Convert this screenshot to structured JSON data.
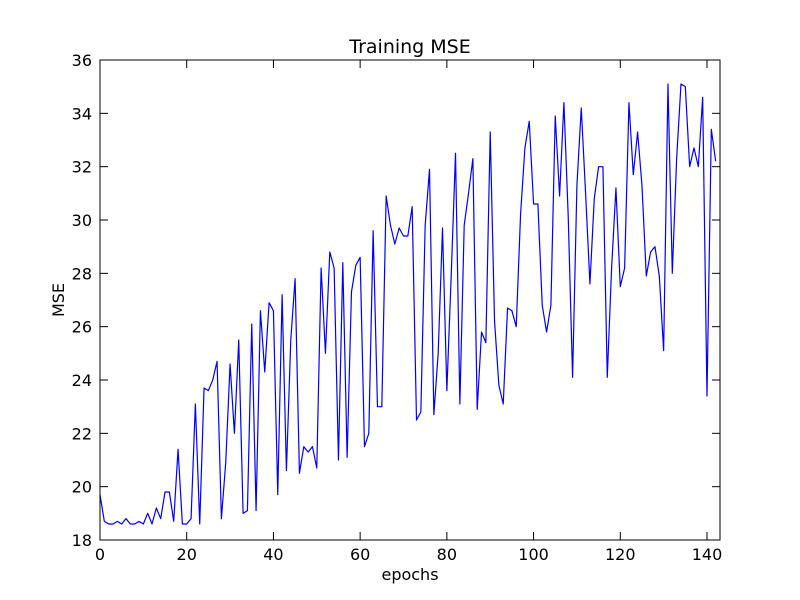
{
  "chart_data": {
    "type": "line",
    "title": "Training MSE",
    "xlabel": "epochs",
    "ylabel": "MSE",
    "xlim": [
      0,
      143
    ],
    "ylim": [
      18,
      36
    ],
    "xticks": [
      0,
      20,
      40,
      60,
      80,
      100,
      120,
      140
    ],
    "yticks": [
      18,
      20,
      22,
      24,
      26,
      28,
      30,
      32,
      34,
      36
    ],
    "grid": false,
    "series": [
      {
        "name": "training MSE",
        "color": "#0000ff",
        "x": [
          0,
          1,
          2,
          3,
          4,
          5,
          6,
          7,
          8,
          9,
          10,
          11,
          12,
          13,
          14,
          15,
          16,
          17,
          18,
          19,
          20,
          21,
          22,
          23,
          24,
          25,
          26,
          27,
          28,
          29,
          30,
          31,
          32,
          33,
          34,
          35,
          36,
          37,
          38,
          39,
          40,
          41,
          42,
          43,
          44,
          45,
          46,
          47,
          48,
          49,
          50,
          51,
          52,
          53,
          54,
          55,
          56,
          57,
          58,
          59,
          60,
          61,
          62,
          63,
          64,
          65,
          66,
          67,
          68,
          69,
          70,
          71,
          72,
          73,
          74,
          75,
          76,
          77,
          78,
          79,
          80,
          81,
          82,
          83,
          84,
          85,
          86,
          87,
          88,
          89,
          90,
          91,
          92,
          93,
          94,
          95,
          96,
          97,
          98,
          99,
          100,
          101,
          102,
          103,
          104,
          105,
          106,
          107,
          108,
          109,
          110,
          111,
          112,
          113,
          114,
          115,
          116,
          117,
          118,
          119,
          120,
          121,
          122,
          123,
          124,
          125,
          126,
          127,
          128,
          129,
          130,
          131,
          132,
          133,
          134,
          135,
          136,
          137,
          138,
          139,
          140,
          141,
          142
        ],
        "values": [
          19.7,
          18.7,
          18.6,
          18.6,
          18.7,
          18.6,
          18.8,
          18.6,
          18.6,
          18.7,
          18.6,
          19.0,
          18.6,
          19.2,
          18.8,
          19.8,
          19.8,
          18.7,
          21.4,
          18.6,
          18.6,
          18.8,
          23.1,
          18.6,
          23.7,
          23.6,
          24.0,
          24.7,
          18.8,
          20.9,
          24.6,
          22.0,
          25.5,
          19.0,
          19.1,
          26.1,
          19.1,
          26.6,
          24.3,
          26.9,
          26.6,
          19.7,
          27.2,
          20.6,
          25.5,
          27.8,
          20.5,
          21.5,
          21.3,
          21.5,
          20.7,
          28.2,
          25.0,
          28.8,
          28.2,
          21.0,
          28.4,
          21.1,
          27.3,
          28.3,
          28.6,
          21.5,
          22.0,
          29.6,
          23.0,
          23.0,
          30.9,
          29.8,
          29.1,
          29.7,
          29.4,
          29.4,
          30.5,
          22.5,
          22.8,
          29.8,
          31.9,
          22.7,
          25.0,
          29.7,
          23.6,
          27.9,
          32.5,
          23.1,
          29.8,
          31.0,
          32.3,
          22.9,
          25.8,
          25.4,
          33.3,
          26.2,
          23.8,
          23.1,
          26.7,
          26.6,
          26.0,
          30.2,
          32.7,
          33.7,
          30.6,
          30.6,
          26.8,
          25.8,
          26.8,
          33.9,
          30.9,
          34.4,
          30.1,
          24.1,
          31.3,
          34.2,
          31.0,
          27.6,
          30.8,
          32.0,
          32.0,
          24.1,
          28.2,
          31.2,
          27.5,
          28.2,
          34.4,
          31.7,
          33.3,
          31.3,
          27.9,
          28.8,
          29.0,
          27.9,
          25.1,
          35.1,
          28.0,
          32.3,
          35.1,
          35.0,
          32.0,
          32.7,
          32.0,
          34.6,
          23.4,
          33.4,
          32.2
        ]
      }
    ]
  }
}
